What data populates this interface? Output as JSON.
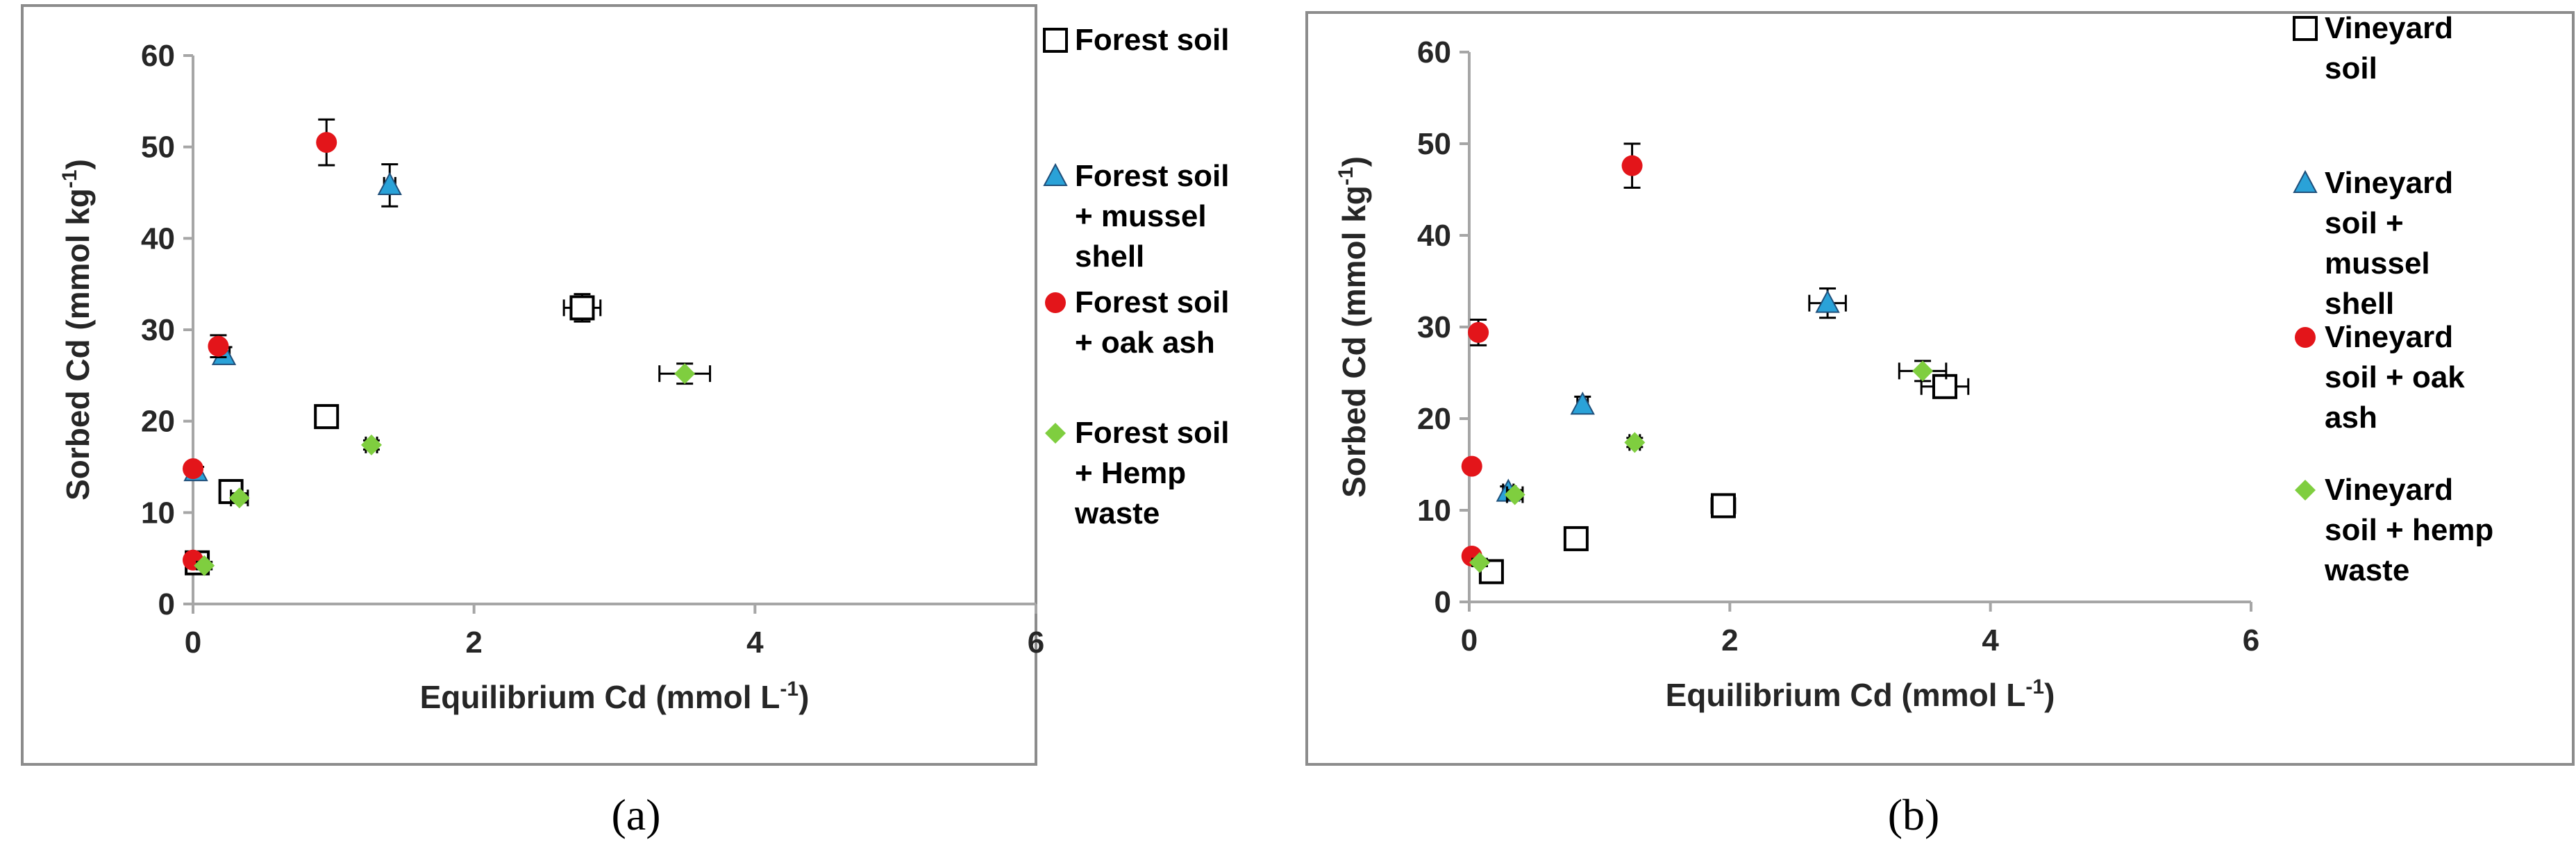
{
  "chart_data": [
    {
      "type": "scatter",
      "caption": "(a)",
      "xlabel": "Equilibrium Cd (mmol L",
      "xlabel_sup": "-1",
      "xlabel_end": ")",
      "ylabel": "Sorbed Cd (mmol kg",
      "ylabel_sup": "-1",
      "ylabel_end": ")",
      "xlim": [
        0,
        6
      ],
      "ylim": [
        0,
        60
      ],
      "xticks": [
        0,
        2,
        4,
        6
      ],
      "yticks": [
        0,
        10,
        20,
        30,
        40,
        50,
        60
      ],
      "legend_position": "right",
      "series": [
        {
          "name_lines": [
            "Forest soil"
          ],
          "marker": "square",
          "color": "#ffffff",
          "points": [
            {
              "x": 0.03,
              "y": 4.5,
              "xerr": 0.05,
              "yerr": 0.6
            },
            {
              "x": 0.27,
              "y": 12.3,
              "xerr": 0.07,
              "yerr": 0.8
            },
            {
              "x": 0.95,
              "y": 20.5,
              "xerr": 0.06,
              "yerr": 0.7
            },
            {
              "x": 2.77,
              "y": 32.4,
              "xerr": 0.13,
              "yerr": 1.5
            }
          ]
        },
        {
          "name_lines": [
            "Forest soil",
            "+ mussel",
            "shell"
          ],
          "marker": "triangle",
          "color": "#2aa2d8",
          "points": [
            {
              "x": 0.02,
              "y": 14.5,
              "xerr": 0.02,
              "yerr": 0.5
            },
            {
              "x": 0.22,
              "y": 27.2,
              "xerr": 0.04,
              "yerr": 0.9
            },
            {
              "x": 1.4,
              "y": 45.8,
              "xerr": 0.04,
              "yerr": 2.3
            }
          ]
        },
        {
          "name_lines": [
            "Forest soil",
            "+ oak ash"
          ],
          "marker": "circle",
          "color": "#e3151a",
          "points": [
            {
              "x": 0.0,
              "y": 4.8,
              "xerr": 0.0,
              "yerr": 0.4
            },
            {
              "x": 0.0,
              "y": 14.8,
              "xerr": 0.0,
              "yerr": 0.5
            },
            {
              "x": 0.18,
              "y": 28.2,
              "xerr": 0.0,
              "yerr": 1.2
            },
            {
              "x": 0.95,
              "y": 50.5,
              "xerr": 0.0,
              "yerr": 2.5
            }
          ]
        },
        {
          "name_lines": [
            "Forest soil",
            "+ Hemp",
            "waste"
          ],
          "marker": "diamond",
          "color": "#7fce3f",
          "points": [
            {
              "x": 0.08,
              "y": 4.2,
              "xerr": 0.0,
              "yerr": 0.4
            },
            {
              "x": 0.33,
              "y": 11.6,
              "xerr": 0.06,
              "yerr": 0.5
            },
            {
              "x": 1.27,
              "y": 17.4,
              "xerr": 0.04,
              "yerr": 0.5
            },
            {
              "x": 3.5,
              "y": 25.2,
              "xerr": 0.18,
              "yerr": 1.1
            }
          ]
        }
      ]
    },
    {
      "type": "scatter",
      "caption": "(b)",
      "xlabel": "Equilibrium Cd (mmol L",
      "xlabel_sup": "-1",
      "xlabel_end": ")",
      "ylabel": "Sorbed Cd (mmol kg",
      "ylabel_sup": "-1",
      "ylabel_end": ")",
      "xlim": [
        0,
        6
      ],
      "ylim": [
        0,
        60
      ],
      "xticks": [
        0,
        2,
        4,
        6
      ],
      "yticks": [
        0,
        10,
        20,
        30,
        40,
        50,
        60
      ],
      "legend_position": "right",
      "series": [
        {
          "name_lines": [
            "Vineyard",
            "soil"
          ],
          "marker": "square",
          "color": "#ffffff",
          "points": [
            {
              "x": 0.17,
              "y": 3.3,
              "xerr": 0.07,
              "yerr": 0.9
            },
            {
              "x": 0.82,
              "y": 6.9,
              "xerr": 0.06,
              "yerr": 0.8
            },
            {
              "x": 1.95,
              "y": 10.5,
              "xerr": 0.09,
              "yerr": 0.9
            },
            {
              "x": 3.65,
              "y": 23.5,
              "xerr": 0.18,
              "yerr": 1.2
            }
          ]
        },
        {
          "name_lines": [
            "Vineyard",
            "soil +",
            "mussel",
            "shell"
          ],
          "marker": "triangle",
          "color": "#2aa2d8",
          "points": [
            {
              "x": 0.3,
              "y": 12.0,
              "xerr": 0.04,
              "yerr": 0.6
            },
            {
              "x": 0.87,
              "y": 21.5,
              "xerr": 0.04,
              "yerr": 0.9
            },
            {
              "x": 2.75,
              "y": 32.6,
              "xerr": 0.14,
              "yerr": 1.6
            }
          ]
        },
        {
          "name_lines": [
            "Vineyard",
            "soil + oak",
            "ash"
          ],
          "marker": "circle",
          "color": "#e3151a",
          "points": [
            {
              "x": 0.02,
              "y": 5.0,
              "xerr": 0.0,
              "yerr": 0.4
            },
            {
              "x": 0.02,
              "y": 14.8,
              "xerr": 0.0,
              "yerr": 0.5
            },
            {
              "x": 0.07,
              "y": 29.4,
              "xerr": 0.0,
              "yerr": 1.4
            },
            {
              "x": 1.25,
              "y": 47.6,
              "xerr": 0.0,
              "yerr": 2.4
            }
          ]
        },
        {
          "name_lines": [
            "Vineyard",
            "soil + hemp",
            "waste"
          ],
          "marker": "diamond",
          "color": "#7fce3f",
          "points": [
            {
              "x": 0.08,
              "y": 4.3,
              "xerr": 0.0,
              "yerr": 0.4
            },
            {
              "x": 0.35,
              "y": 11.7,
              "xerr": 0.06,
              "yerr": 0.5
            },
            {
              "x": 1.27,
              "y": 17.4,
              "xerr": 0.04,
              "yerr": 0.5
            },
            {
              "x": 3.48,
              "y": 25.2,
              "xerr": 0.18,
              "yerr": 1.1
            }
          ]
        }
      ]
    }
  ]
}
